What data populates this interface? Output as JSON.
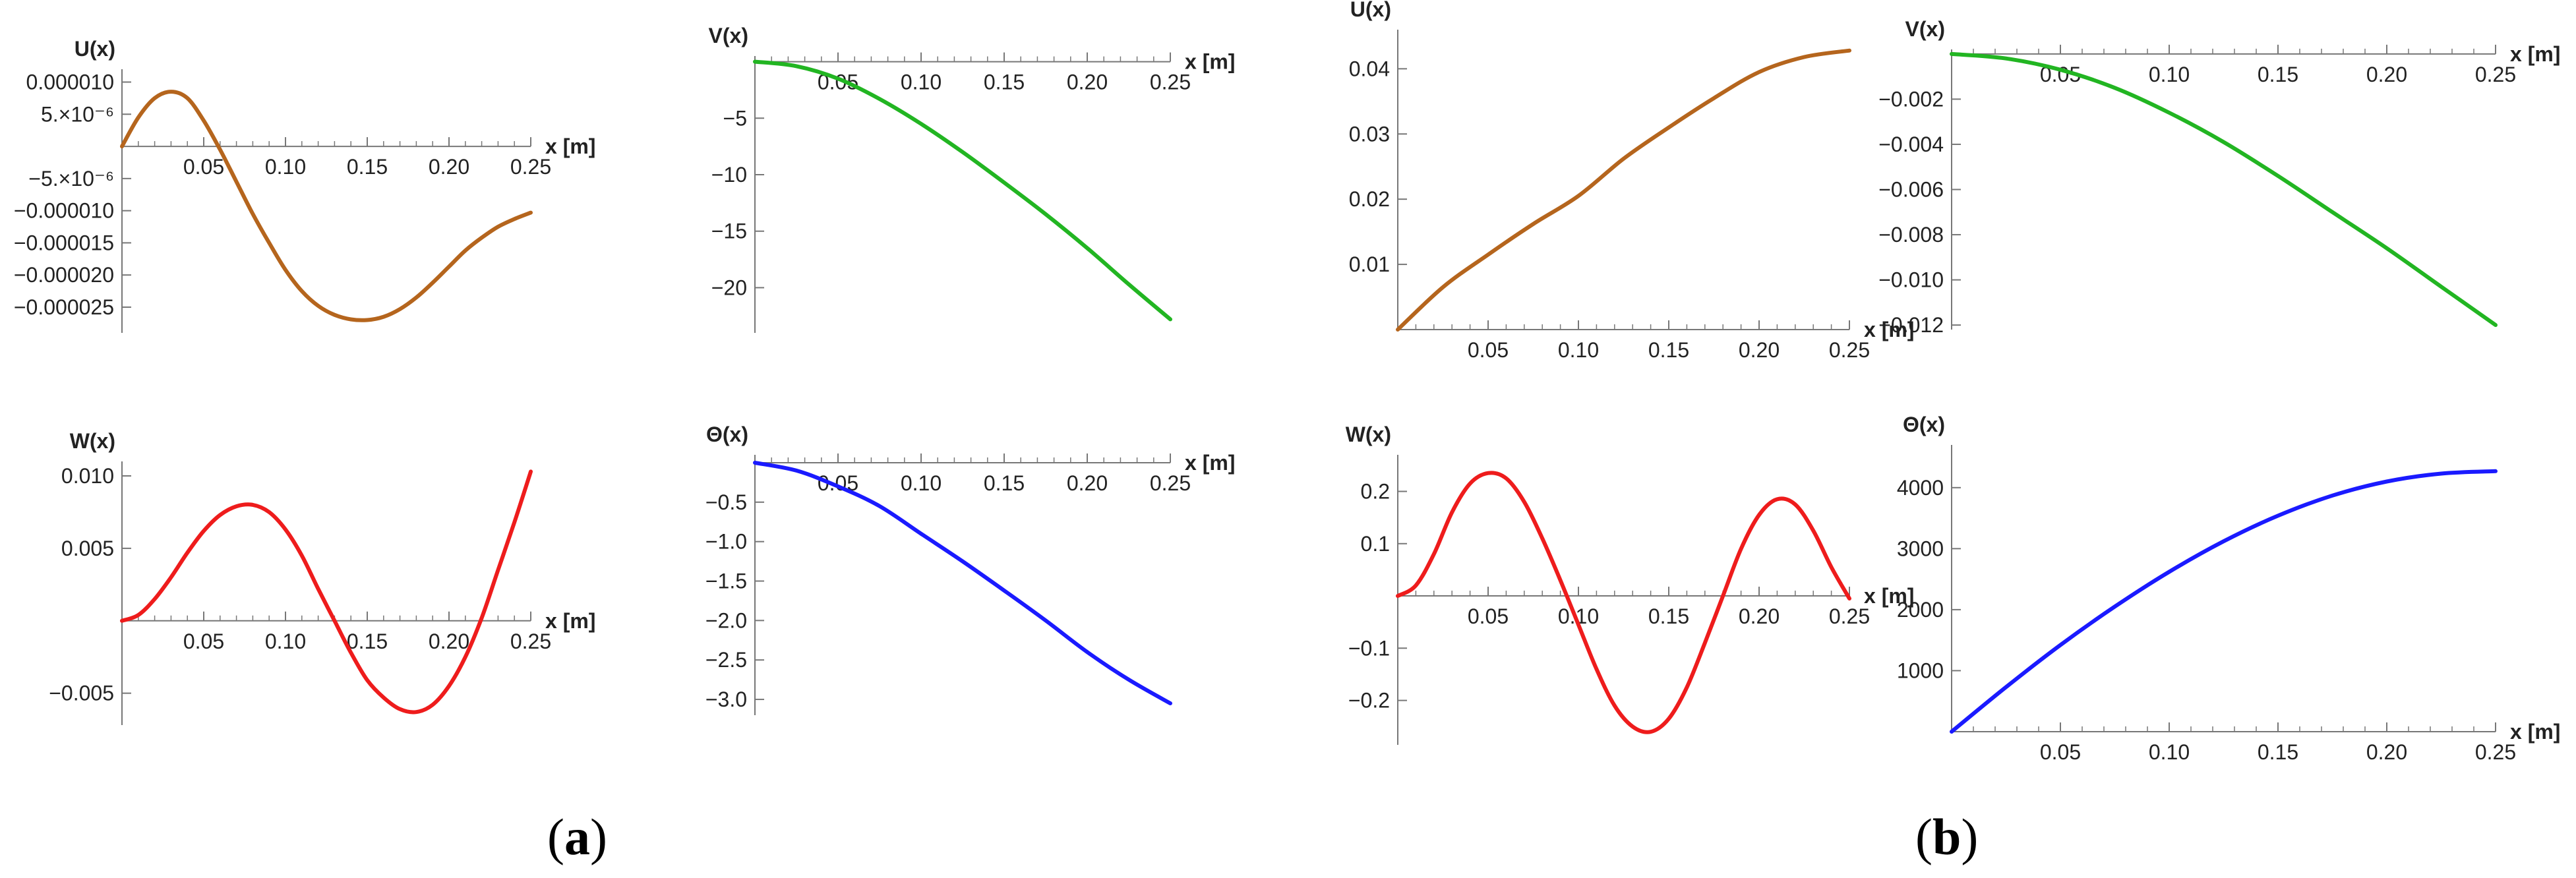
{
  "panels": [
    {
      "label": "a"
    },
    {
      "label": "b"
    }
  ],
  "chart_data": [
    {
      "type": "line",
      "panel": "a",
      "title": "",
      "ylabel": "U(x)",
      "xlabel": "x [m]",
      "color": "#b5651d",
      "xlim": [
        0,
        0.25
      ],
      "ylim": [
        -2.9e-05,
        1.2e-05
      ],
      "xticks": [
        0.05,
        0.1,
        0.15,
        0.2,
        0.25
      ],
      "xtick_labels": [
        "0.05",
        "0.10",
        "0.15",
        "0.20",
        "0.25"
      ],
      "yticks": [
        1e-05,
        5e-06,
        -5e-06,
        -1e-05,
        -1.5e-05,
        -2e-05,
        -2.5e-05
      ],
      "ytick_labels": [
        "0.000010",
        "5.×10⁻⁶",
        "−5.×10⁻⁶",
        "−0.000010",
        "−0.000015",
        "−0.000020",
        "−0.000025"
      ],
      "x": [
        0,
        0.01,
        0.02,
        0.03,
        0.04,
        0.05,
        0.06,
        0.07,
        0.08,
        0.09,
        0.1,
        0.11,
        0.12,
        0.13,
        0.14,
        0.15,
        0.16,
        0.17,
        0.18,
        0.19,
        0.2,
        0.21,
        0.22,
        0.23,
        0.24,
        0.25
      ],
      "y": [
        0,
        4.5e-06,
        7.5e-06,
        8.5e-06,
        7.5e-06,
        4e-06,
        -5e-07,
        -5.5e-06,
        -1.05e-05,
        -1.5e-05,
        -1.92e-05,
        -2.25e-05,
        -2.48e-05,
        -2.62e-05,
        -2.69e-05,
        -2.7e-05,
        -2.65e-05,
        -2.53e-05,
        -2.35e-05,
        -2.12e-05,
        -1.87e-05,
        -1.62e-05,
        -1.42e-05,
        -1.25e-05,
        -1.13e-05,
        -1.03e-05
      ]
    },
    {
      "type": "line",
      "panel": "a",
      "title": "",
      "ylabel": "V(x)",
      "xlabel": "x [m]",
      "color": "#22b522",
      "xlim": [
        0,
        0.25
      ],
      "ylim": [
        -24,
        0.5
      ],
      "xticks": [
        0.05,
        0.1,
        0.15,
        0.2,
        0.25
      ],
      "xtick_labels": [
        "0.05",
        "0.10",
        "0.15",
        "0.20",
        "0.25"
      ],
      "yticks": [
        -5,
        -10,
        -15,
        -20
      ],
      "ytick_labels": [
        "−5",
        "−10",
        "−15",
        "−20"
      ],
      "x": [
        0,
        0.025,
        0.05,
        0.075,
        0.1,
        0.125,
        0.15,
        0.175,
        0.2,
        0.225,
        0.25
      ],
      "y": [
        0,
        -0.4,
        -1.5,
        -3.3,
        -5.5,
        -8.0,
        -10.7,
        -13.5,
        -16.5,
        -19.7,
        -22.8
      ]
    },
    {
      "type": "line",
      "panel": "a",
      "title": "",
      "ylabel": "W(x)",
      "xlabel": "x [m]",
      "color": "#ee1c1c",
      "xlim": [
        0,
        0.25
      ],
      "ylim": [
        -0.0072,
        0.011
      ],
      "xticks": [
        0.05,
        0.1,
        0.15,
        0.2,
        0.25
      ],
      "xtick_labels": [
        "0.05",
        "0.10",
        "0.15",
        "0.20",
        "0.25"
      ],
      "yticks": [
        0.01,
        0.005,
        -0.005
      ],
      "ytick_labels": [
        "0.010",
        "0.005",
        "−0.005"
      ],
      "x": [
        0,
        0.01,
        0.02,
        0.03,
        0.04,
        0.05,
        0.06,
        0.07,
        0.08,
        0.09,
        0.1,
        0.11,
        0.12,
        0.13,
        0.14,
        0.15,
        0.16,
        0.17,
        0.18,
        0.19,
        0.2,
        0.21,
        0.22,
        0.23,
        0.24,
        0.25
      ],
      "y": [
        0,
        0.0004,
        0.0015,
        0.003,
        0.0047,
        0.0062,
        0.0073,
        0.0079,
        0.008,
        0.0075,
        0.0063,
        0.0045,
        0.0022,
        0.0,
        -0.0022,
        -0.0041,
        -0.0053,
        -0.0061,
        -0.0063,
        -0.0058,
        -0.0045,
        -0.0025,
        0.0002,
        0.0035,
        0.0068,
        0.0103
      ]
    },
    {
      "type": "line",
      "panel": "a",
      "title": "",
      "ylabel": "Θ(x)",
      "xlabel": "x [m]",
      "color": "#1a1aff",
      "xlim": [
        0,
        0.25
      ],
      "ylim": [
        -3.2,
        0.1
      ],
      "xticks": [
        0.05,
        0.1,
        0.15,
        0.2,
        0.25
      ],
      "xtick_labels": [
        "0.05",
        "0.10",
        "0.15",
        "0.20",
        "0.25"
      ],
      "yticks": [
        -0.5,
        -1.0,
        -1.5,
        -2.0,
        -2.5,
        -3.0
      ],
      "ytick_labels": [
        "−0.5",
        "−1.0",
        "−1.5",
        "−2.0",
        "−2.5",
        "−3.0"
      ],
      "x": [
        0,
        0.025,
        0.05,
        0.075,
        0.1,
        0.125,
        0.15,
        0.175,
        0.2,
        0.225,
        0.25
      ],
      "y": [
        0,
        -0.1,
        -0.3,
        -0.55,
        -0.9,
        -1.25,
        -1.62,
        -2.0,
        -2.4,
        -2.75,
        -3.05
      ]
    },
    {
      "type": "line",
      "panel": "b",
      "title": "",
      "ylabel": "U(x)",
      "xlabel": "x [m]",
      "color": "#b5651d",
      "xlim": [
        0,
        0.25
      ],
      "ylim": [
        0,
        0.046
      ],
      "xticks": [
        0.05,
        0.1,
        0.15,
        0.2,
        0.25
      ],
      "xtick_labels": [
        "0.05",
        "0.10",
        "0.15",
        "0.20",
        "0.25"
      ],
      "yticks": [
        0.01,
        0.02,
        0.03,
        0.04
      ],
      "ytick_labels": [
        "0.01",
        "0.02",
        "0.03",
        "0.04"
      ],
      "x": [
        0,
        0.025,
        0.05,
        0.075,
        0.1,
        0.125,
        0.15,
        0.175,
        0.2,
        0.225,
        0.25
      ],
      "y": [
        0,
        0.0065,
        0.0115,
        0.0162,
        0.0205,
        0.0262,
        0.031,
        0.0355,
        0.0395,
        0.0418,
        0.0428
      ]
    },
    {
      "type": "line",
      "panel": "b",
      "title": "",
      "ylabel": "V(x)",
      "xlabel": "x [m]",
      "color": "#22b522",
      "xlim": [
        0,
        0.25
      ],
      "ylim": [
        -0.0122,
        0.0002
      ],
      "xticks": [
        0.05,
        0.1,
        0.15,
        0.2,
        0.25
      ],
      "xtick_labels": [
        "0.05",
        "0.10",
        "0.15",
        "0.20",
        "0.25"
      ],
      "yticks": [
        -0.002,
        -0.004,
        -0.006,
        -0.008,
        -0.01,
        -0.012
      ],
      "ytick_labels": [
        "−0.002",
        "−0.004",
        "−0.006",
        "−0.008",
        "−0.010",
        "−0.012"
      ],
      "x": [
        0,
        0.025,
        0.05,
        0.075,
        0.1,
        0.125,
        0.15,
        0.175,
        0.2,
        0.225,
        0.25
      ],
      "y": [
        0,
        -0.0002,
        -0.0007,
        -0.0015,
        -0.0026,
        -0.0039,
        -0.0054,
        -0.007,
        -0.0086,
        -0.0103,
        -0.012
      ]
    },
    {
      "type": "line",
      "panel": "b",
      "title": "",
      "ylabel": "W(x)",
      "xlabel": "x [m]",
      "color": "#ee1c1c",
      "xlim": [
        0,
        0.25
      ],
      "ylim": [
        -0.285,
        0.27
      ],
      "xticks": [
        0.05,
        0.1,
        0.15,
        0.2,
        0.25
      ],
      "xtick_labels": [
        "0.05",
        "0.10",
        "0.15",
        "0.20",
        "0.25"
      ],
      "yticks": [
        0.2,
        0.1,
        -0.1,
        -0.2
      ],
      "ytick_labels": [
        "0.2",
        "0.1",
        "−0.1",
        "−0.2"
      ],
      "x": [
        0,
        0.01,
        0.02,
        0.03,
        0.04,
        0.05,
        0.06,
        0.07,
        0.08,
        0.09,
        0.1,
        0.11,
        0.12,
        0.13,
        0.14,
        0.15,
        0.16,
        0.17,
        0.18,
        0.19,
        0.2,
        0.21,
        0.22,
        0.23,
        0.24,
        0.25
      ],
      "y": [
        0,
        0.02,
        0.08,
        0.16,
        0.215,
        0.235,
        0.225,
        0.18,
        0.11,
        0.03,
        -0.055,
        -0.14,
        -0.21,
        -0.25,
        -0.26,
        -0.235,
        -0.175,
        -0.09,
        0.0,
        0.09,
        0.155,
        0.185,
        0.175,
        0.125,
        0.055,
        -0.005
      ]
    },
    {
      "type": "line",
      "panel": "b",
      "title": "",
      "ylabel": "Θ(x)",
      "xlabel": "x [m]",
      "color": "#1a1aff",
      "xlim": [
        0,
        0.25
      ],
      "ylim": [
        0,
        4700
      ],
      "xticks": [
        0.05,
        0.1,
        0.15,
        0.2,
        0.25
      ],
      "xtick_labels": [
        "0.05",
        "0.10",
        "0.15",
        "0.20",
        "0.25"
      ],
      "yticks": [
        1000,
        2000,
        3000,
        4000
      ],
      "ytick_labels": [
        "1000",
        "2000",
        "3000",
        "4000"
      ],
      "x": [
        0,
        0.025,
        0.05,
        0.075,
        0.1,
        0.125,
        0.15,
        0.175,
        0.2,
        0.225,
        0.25
      ],
      "y": [
        0,
        730,
        1420,
        2050,
        2620,
        3120,
        3540,
        3870,
        4100,
        4230,
        4270
      ]
    }
  ]
}
